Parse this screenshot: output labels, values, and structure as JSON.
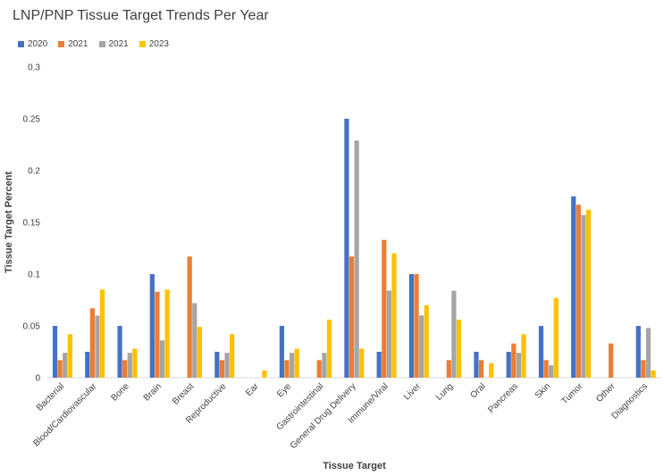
{
  "chart_data": {
    "type": "bar",
    "title": "LNP/PNP Tissue Target Trends Per Year",
    "xlabel": "Tissue Target",
    "ylabel": "Tissue Target Percent",
    "ylim": [
      0,
      0.3
    ],
    "yticks": [
      "0",
      "0.05",
      "0.1",
      "0.15",
      "0.2",
      "0.25",
      "0.3"
    ],
    "legend_position": "top-left",
    "grid": false,
    "categories": [
      "Bacterial",
      "Blood/Cardiovascular",
      "Bone",
      "Brain",
      "Breast",
      "Reproductive",
      "Ear",
      "Eye",
      "Gastrointestinal",
      "General Drug Delivery",
      "Immune/Viral",
      "Liver",
      "Lung",
      "Oral",
      "Pancreas",
      "Skin",
      "Tumor",
      "Other",
      "Diagnostics"
    ],
    "series": [
      {
        "name": "2020",
        "color": "#4472C4",
        "values": [
          0.05,
          0.025,
          0.05,
          0.1,
          0,
          0.025,
          0,
          0.05,
          0,
          0.25,
          0.025,
          0.1,
          0,
          0.025,
          0.025,
          0.05,
          0.175,
          0,
          0.05
        ]
      },
      {
        "name": "2021",
        "color": "#ED7D31",
        "values": [
          0.017,
          0.067,
          0.017,
          0.083,
          0.117,
          0.017,
          0,
          0.017,
          0.017,
          0.117,
          0.133,
          0.1,
          0.017,
          0.017,
          0.033,
          0.017,
          0.167,
          0.033,
          0.017
        ]
      },
      {
        "name": "2021",
        "color": "#A5A5A5",
        "values": [
          0.024,
          0.06,
          0.024,
          0.036,
          0.072,
          0.024,
          0,
          0.024,
          0.024,
          0.229,
          0.084,
          0.06,
          0.084,
          0,
          0.024,
          0.012,
          0.157,
          0,
          0.048
        ]
      },
      {
        "name": "2023",
        "color": "#FFC000",
        "values": [
          0.042,
          0.085,
          0.028,
          0.085,
          0.049,
          0.042,
          0.007,
          0.028,
          0.056,
          0.028,
          0.12,
          0.07,
          0.056,
          0.014,
          0.042,
          0.077,
          0.162,
          0,
          0.007
        ]
      }
    ]
  }
}
